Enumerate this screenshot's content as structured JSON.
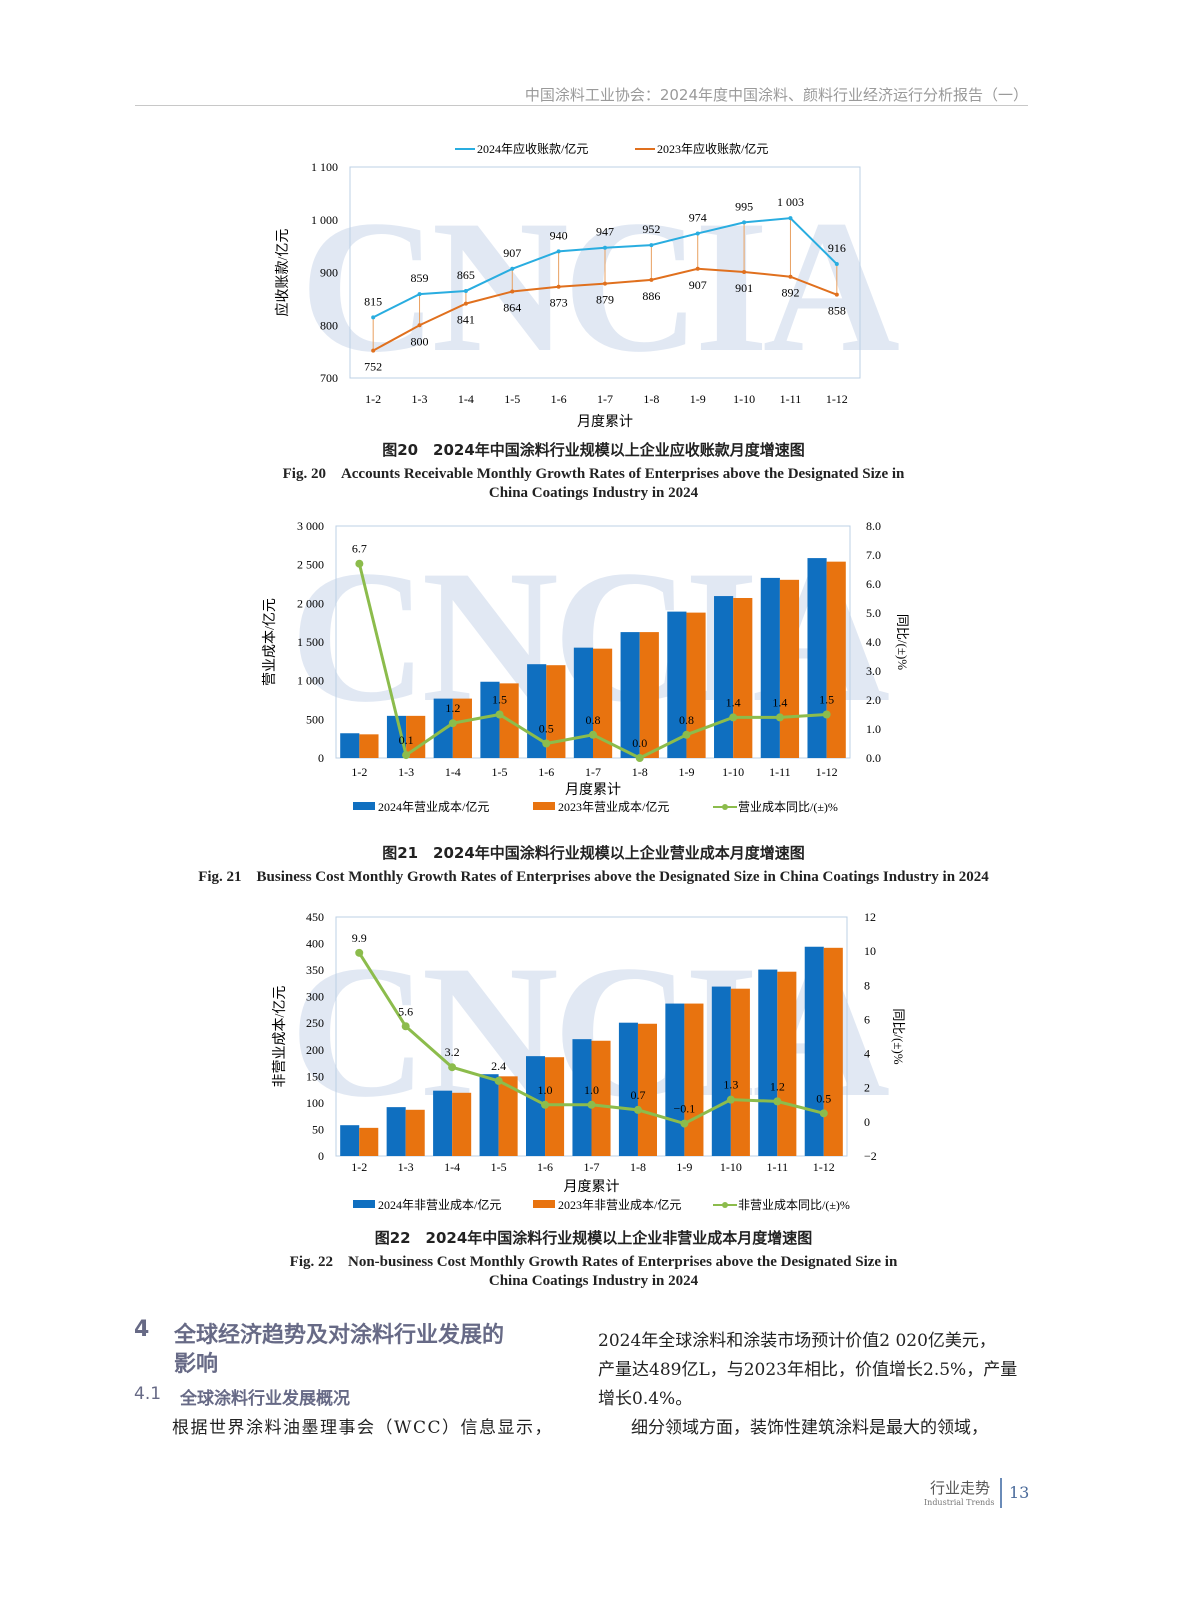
{
  "header": {
    "title": "中国涂料工业协会：2024年度中国涂料、颜料行业经济运行分析报告（一）"
  },
  "watermark": "CNCIA",
  "colors": {
    "blue_bar": "#0f6fc0",
    "orange_bar": "#e8730f",
    "green_line": "#8cbc4c",
    "line_2024": "#29ade0",
    "line_2023": "#e0701e",
    "heading": "#676a86"
  },
  "figures": [
    {
      "caption_cn": "图20　2024年中国涂料行业规模以上企业应收账款月度增速图",
      "caption_en_1": "Fig. 20　Accounts Receivable Monthly Growth Rates of Enterprises above the Designated Size in",
      "caption_en_2": "China Coatings Industry in 2024"
    },
    {
      "caption_cn": "图21　2024年中国涂料行业规模以上企业营业成本月度增速图",
      "caption_en_1": "Fig. 21　Business Cost Monthly Growth Rates of Enterprises above the Designated Size in China Coatings Industry in 2024"
    },
    {
      "caption_cn": "图22　2024年中国涂料行业规模以上企业非营业成本月度增速图",
      "caption_en_1": "Fig. 22　Non-business Cost Monthly Growth Rates of Enterprises above the Designated Size in",
      "caption_en_2": "China Coatings Industry in 2024"
    }
  ],
  "chart_data": [
    {
      "type": "line",
      "categories": [
        "1-2",
        "1-3",
        "1-4",
        "1-5",
        "1-6",
        "1-7",
        "1-8",
        "1-9",
        "1-10",
        "1-11",
        "1-12"
      ],
      "series": [
        {
          "name": "2024年应收账款/亿元",
          "values": [
            815,
            859,
            865,
            907,
            940,
            947,
            952,
            974,
            995,
            1003,
            916
          ],
          "labels": [
            "815",
            "859",
            "865",
            "907",
            "940",
            "947",
            "952",
            "974",
            "995",
            "1 003",
            "916"
          ]
        },
        {
          "name": "2023年应收账款/亿元",
          "values": [
            752,
            800,
            841,
            864,
            873,
            879,
            886,
            907,
            901,
            892,
            858
          ],
          "labels": [
            "752",
            "800",
            "841",
            "864",
            "873",
            "879",
            "886",
            "907",
            "901",
            "892",
            "858"
          ]
        }
      ],
      "xlabel": "月度累计",
      "ylabel": "应收账款/亿元",
      "ylim": [
        700,
        1100
      ],
      "yticks": [
        "700",
        "800",
        "900",
        "1 000",
        "1 100"
      ],
      "legend": "top",
      "grid": false
    },
    {
      "type": "bar",
      "categories": [
        "1-2",
        "1-3",
        "1-4",
        "1-5",
        "1-6",
        "1-7",
        "1-8",
        "1-9",
        "1-10",
        "1-11",
        "1-12"
      ],
      "series": [
        {
          "name": "2024年营业成本/亿元",
          "type": "bar",
          "values": [
            320,
            545,
            768,
            986,
            1213,
            1427,
            1628,
            1893,
            2094,
            2329,
            2585
          ]
        },
        {
          "name": "2023年营业成本/亿元",
          "type": "bar",
          "values": [
            306,
            545,
            768,
            965,
            1200,
            1414,
            1628,
            1880,
            2069,
            2304,
            2539
          ]
        },
        {
          "name": "营业成本同比/(±)%",
          "type": "line",
          "axis": "right",
          "values": [
            6.7,
            0.1,
            1.2,
            1.5,
            0.5,
            0.8,
            0.0,
            0.8,
            1.4,
            1.4,
            1.5
          ],
          "labels": [
            "6.7",
            "0.1",
            "1.2",
            "1.5",
            "0.5",
            "0.8",
            "0.0",
            "0.8",
            "1.4",
            "1.4",
            "1.5"
          ]
        }
      ],
      "xlabel": "月度累计",
      "ylabel": "营业成本/亿元",
      "y2label": "同比/(±)%",
      "ylim": [
        0,
        3000
      ],
      "yticks": [
        "0",
        "500",
        "1 000",
        "1 500",
        "2 000",
        "2 500",
        "3 000"
      ],
      "y2lim": [
        0,
        8
      ],
      "y2ticks": [
        "0.0",
        "1.0",
        "2.0",
        "3.0",
        "4.0",
        "5.0",
        "6.0",
        "7.0",
        "8.0"
      ],
      "legend": "bottom",
      "grid": false
    },
    {
      "type": "bar",
      "categories": [
        "1-2",
        "1-3",
        "1-4",
        "1-5",
        "1-6",
        "1-7",
        "1-8",
        "1-9",
        "1-10",
        "1-11",
        "1-12"
      ],
      "series": [
        {
          "name": "2024年非营业成本/亿元",
          "type": "bar",
          "values": [
            58,
            92,
            123,
            154,
            188,
            220,
            251,
            287,
            319,
            351,
            394
          ]
        },
        {
          "name": "2023年非营业成本/亿元",
          "type": "bar",
          "values": [
            53,
            87,
            119,
            150,
            186,
            217,
            249,
            287,
            315,
            347,
            392
          ]
        },
        {
          "name": "非营业成本同比/(±)%",
          "type": "line",
          "axis": "right",
          "values": [
            9.9,
            5.6,
            3.2,
            2.4,
            1.0,
            1.0,
            0.7,
            -0.1,
            1.3,
            1.2,
            0.5
          ],
          "labels": [
            "9.9",
            "5.6",
            "3.2",
            "2.4",
            "1.0",
            "1.0",
            "0.7",
            "−0.1",
            "1.3",
            "1.2",
            "0.5"
          ]
        }
      ],
      "xlabel": "月度累计",
      "ylabel": "非营业成本/亿元",
      "y2label": "同比/(±)%",
      "ylim": [
        0,
        450
      ],
      "yticks": [
        "0",
        "50",
        "100",
        "150",
        "200",
        "250",
        "300",
        "350",
        "400",
        "450"
      ],
      "y2lim": [
        -2,
        12
      ],
      "y2ticks": [
        "−2",
        "0",
        "2",
        "4",
        "6",
        "8",
        "10",
        "12"
      ],
      "legend": "bottom",
      "grid": false
    }
  ],
  "section": {
    "heading_number": "4",
    "heading_line1": "全球经济趋势及对涂料行业发展的",
    "heading_line2": "影响",
    "sub_number": "4.1",
    "sub_title": "全球涂料行业发展概况",
    "left_para": "根据世界涂料油墨理事会（WCC）信息显示，",
    "right_lines": [
      "2024年全球涂料和涂装市场预计价值2 020亿美元，",
      "产量达489亿L，与2023年相比，价值增长2.5%，产量",
      "增长0.4%。",
      "　细分领域方面，装饰性建筑涂料是最大的领域，"
    ]
  },
  "footer": {
    "label": "行业走势",
    "label_en": "Industrial Trends",
    "page": "13"
  }
}
